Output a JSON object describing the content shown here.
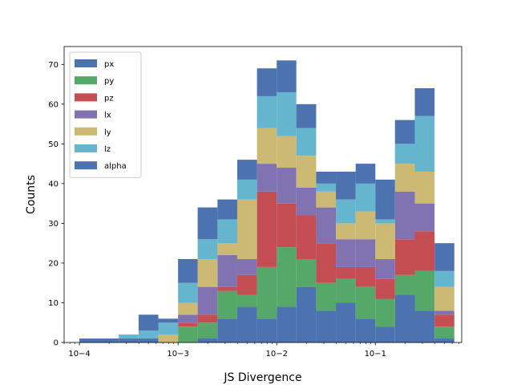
{
  "chart_data": {
    "type": "bar",
    "subtype": "stacked histogram",
    "xscale": "log",
    "xlabel": "JS Divergence",
    "ylabel": "Counts",
    "xlim": [
      7e-05,
      0.75
    ],
    "ylim": [
      0,
      74.5
    ],
    "yticks": [
      0,
      10,
      20,
      30,
      40,
      50,
      60,
      70
    ],
    "xticks": [
      {
        "value": 0.0001,
        "label": "10−4"
      },
      {
        "value": 0.001,
        "label": "10−3"
      },
      {
        "value": 0.01,
        "label": "10−2"
      },
      {
        "value": 0.1,
        "label": "10−1"
      }
    ],
    "bin_edges": [
      0.0001,
      0.000158,
      0.000251,
      0.000398,
      0.000631,
      0.001,
      0.00158,
      0.00251,
      0.00398,
      0.00631,
      0.01,
      0.0158,
      0.0251,
      0.0398,
      0.0631,
      0.1,
      0.158,
      0.251,
      0.398,
      0.631
    ],
    "legend_position": "upper-left",
    "series": [
      {
        "name": "px",
        "color": "#4c72b0",
        "values": [
          1,
          1,
          1,
          1,
          0,
          0,
          1,
          6,
          9,
          6,
          9,
          14,
          8,
          10,
          6,
          4,
          12,
          8,
          1
        ]
      },
      {
        "name": "py",
        "color": "#55a868",
        "values": [
          0,
          0,
          0,
          0,
          0,
          4,
          4,
          7,
          3,
          13,
          15,
          7,
          7,
          6,
          8,
          7,
          5,
          10,
          3
        ]
      },
      {
        "name": "pz",
        "color": "#c44e52",
        "values": [
          0,
          0,
          0,
          0,
          0,
          1,
          2,
          1,
          5,
          19,
          11,
          11,
          10,
          3,
          5,
          5,
          9,
          10,
          3
        ]
      },
      {
        "name": "lx",
        "color": "#8172b2",
        "values": [
          0,
          0,
          0,
          0,
          0,
          2,
          7,
          8,
          4,
          7,
          9,
          7,
          9,
          7,
          7,
          5,
          12,
          7,
          1
        ]
      },
      {
        "name": "ly",
        "color": "#ccb974",
        "values": [
          0,
          0,
          0,
          0,
          2,
          3,
          7,
          3,
          15,
          9,
          8,
          8,
          4,
          4,
          7,
          9,
          7,
          8,
          6
        ]
      },
      {
        "name": "lz",
        "color": "#64b5cd",
        "values": [
          0,
          0,
          1,
          2,
          3,
          5,
          5,
          6,
          5,
          8,
          11,
          7,
          2,
          6,
          7,
          1,
          5,
          14,
          4
        ]
      },
      {
        "name": "alpha",
        "color": "#4c72b0",
        "values": [
          0,
          0,
          0,
          4,
          1,
          6,
          8,
          5,
          5,
          7,
          8,
          6,
          3,
          7,
          5,
          10,
          6,
          7,
          7
        ]
      }
    ]
  }
}
